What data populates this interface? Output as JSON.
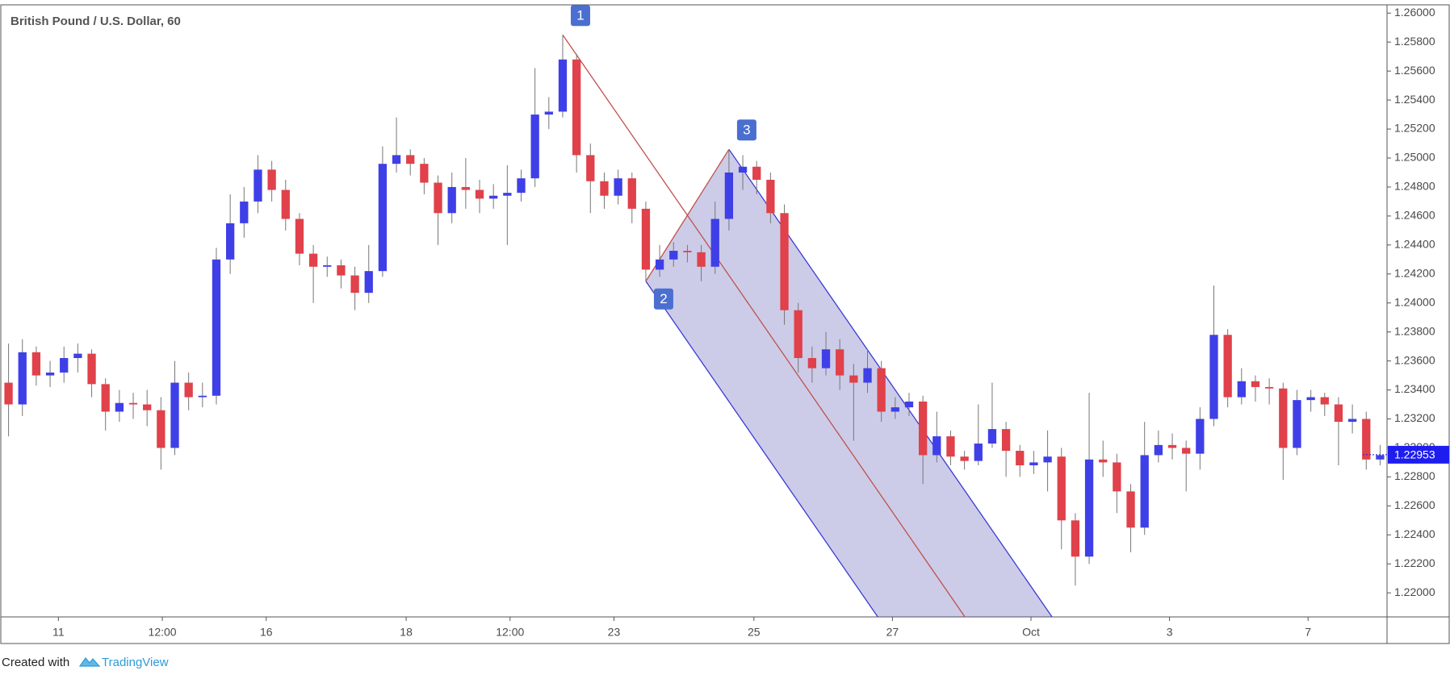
{
  "chart_data": {
    "type": "candlestick",
    "title": "British Pound / U.S. Dollar, 60",
    "footer": {
      "prefix": "Created with",
      "brand": "TradingView"
    },
    "up_color": "#3f3fe8",
    "down_color": "#e0414a",
    "xlim": [
      -0.5,
      99.5
    ],
    "xticks": [
      {
        "value": 3.6,
        "label": "11"
      },
      {
        "value": 11.1,
        "label": "12:00"
      },
      {
        "value": 18.6,
        "label": "16"
      },
      {
        "value": 28.7,
        "label": "18"
      },
      {
        "value": 36.2,
        "label": "12:00"
      },
      {
        "value": 43.7,
        "label": "23"
      },
      {
        "value": 53.8,
        "label": "25"
      },
      {
        "value": 63.8,
        "label": "27"
      },
      {
        "value": 73.8,
        "label": "Oct"
      },
      {
        "value": 83.8,
        "label": "3"
      },
      {
        "value": 93.8,
        "label": "7"
      }
    ],
    "ylim": [
      1.21834,
      1.26057
    ],
    "yticks": [
      {
        "value": 1.22,
        "label": "1.22000"
      },
      {
        "value": 1.222,
        "label": "1.22200"
      },
      {
        "value": 1.224,
        "label": "1.22400"
      },
      {
        "value": 1.226,
        "label": "1.22600"
      },
      {
        "value": 1.228,
        "label": "1.22800"
      },
      {
        "value": 1.23,
        "label": "1.23000"
      },
      {
        "value": 1.232,
        "label": "1.23200"
      },
      {
        "value": 1.234,
        "label": "1.23400"
      },
      {
        "value": 1.236,
        "label": "1.23600"
      },
      {
        "value": 1.238,
        "label": "1.23800"
      },
      {
        "value": 1.24,
        "label": "1.24000"
      },
      {
        "value": 1.242,
        "label": "1.24200"
      },
      {
        "value": 1.244,
        "label": "1.24400"
      },
      {
        "value": 1.246,
        "label": "1.24600"
      },
      {
        "value": 1.248,
        "label": "1.24800"
      },
      {
        "value": 1.25,
        "label": "1.25000"
      },
      {
        "value": 1.252,
        "label": "1.25200"
      },
      {
        "value": 1.254,
        "label": "1.25400"
      },
      {
        "value": 1.256,
        "label": "1.25600"
      },
      {
        "value": 1.258,
        "label": "1.25800"
      },
      {
        "value": 1.26,
        "label": "1.26000"
      }
    ],
    "last_price": 1.22953,
    "last_price_color": "#1d1df0",
    "channel": {
      "line_color": "#3a3ad6",
      "median_color": "#c0504d",
      "fill": "#3a3aa8"
    },
    "annotations": [
      {
        "label": "1",
        "x": 40,
        "y": 1.2585
      },
      {
        "label": "2",
        "x": 46,
        "y": 1.2415
      },
      {
        "label": "3",
        "x": 52,
        "y": 1.2506
      }
    ],
    "open": [
      1.2345,
      1.233,
      1.2366,
      1.235,
      1.2352,
      1.2362,
      1.2365,
      1.2344,
      1.2325,
      1.2331,
      1.233,
      1.2326,
      1.23,
      1.2345,
      1.2335,
      1.2336,
      1.243,
      1.2455,
      1.247,
      1.2492,
      1.2478,
      1.2458,
      1.2434,
      1.2425,
      1.2426,
      1.2419,
      1.2407,
      1.2422,
      1.2496,
      1.2502,
      1.2496,
      1.2483,
      1.2462,
      1.248,
      1.2478,
      1.2472,
      1.2474,
      1.2476,
      1.2486,
      1.253,
      1.2532,
      1.2568,
      1.2502,
      1.2484,
      1.2474,
      1.2486,
      1.2465,
      1.2423,
      1.243,
      1.2436,
      1.2435,
      1.2425,
      1.2458,
      1.249,
      1.2494,
      1.2485,
      1.2462,
      1.2395,
      1.2362,
      1.2355,
      1.2368,
      1.235,
      1.2345,
      1.2355,
      1.2325,
      1.2328,
      1.2332,
      1.2295,
      1.2308,
      1.2294,
      1.2291,
      1.2303,
      1.2313,
      1.2298,
      1.2288,
      1.229,
      1.2294,
      1.225,
      1.2225,
      1.2292,
      1.229,
      1.227,
      1.2245,
      1.2295,
      1.2302,
      1.23,
      1.2296,
      1.232,
      1.2378,
      1.2335,
      1.2346,
      1.2342,
      1.2341,
      1.23,
      1.2333,
      1.2335,
      1.233,
      1.2318,
      1.232,
      1.2292
    ],
    "high": [
      1.2372,
      1.2375,
      1.237,
      1.236,
      1.237,
      1.2372,
      1.2368,
      1.2348,
      1.234,
      1.2338,
      1.234,
      1.2335,
      1.236,
      1.2352,
      1.2345,
      1.2438,
      1.2475,
      1.248,
      1.2502,
      1.2498,
      1.2485,
      1.2462,
      1.244,
      1.2432,
      1.243,
      1.2425,
      1.244,
      1.2508,
      1.2528,
      1.2506,
      1.25,
      1.2488,
      1.249,
      1.25,
      1.2485,
      1.2482,
      1.2495,
      1.2492,
      1.2562,
      1.2542,
      1.2585,
      1.2572,
      1.251,
      1.249,
      1.2492,
      1.249,
      1.247,
      1.244,
      1.2442,
      1.244,
      1.244,
      1.247,
      1.2506,
      1.2502,
      1.2498,
      1.249,
      1.2468,
      1.24,
      1.237,
      1.238,
      1.2375,
      1.2358,
      1.2368,
      1.236,
      1.2335,
      1.2338,
      1.2336,
      1.2325,
      1.2312,
      1.2298,
      1.233,
      1.2345,
      1.2318,
      1.2302,
      1.2298,
      1.2312,
      1.23,
      1.2255,
      1.2338,
      1.2305,
      1.2296,
      1.2275,
      1.2318,
      1.2312,
      1.231,
      1.2305,
      1.2328,
      1.2412,
      1.2382,
      1.2355,
      1.235,
      1.2348,
      1.2345,
      1.234,
      1.234,
      1.2338,
      1.2335,
      1.233,
      1.2325,
      1.2302
    ],
    "low": [
      1.2308,
      1.2322,
      1.2343,
      1.2342,
      1.2345,
      1.2352,
      1.2335,
      1.2312,
      1.2318,
      1.232,
      1.2315,
      1.2285,
      1.2295,
      1.2326,
      1.2328,
      1.233,
      1.242,
      1.2445,
      1.2462,
      1.247,
      1.245,
      1.2426,
      1.24,
      1.2418,
      1.241,
      1.2395,
      1.24,
      1.2418,
      1.249,
      1.2488,
      1.2475,
      1.244,
      1.2455,
      1.2465,
      1.2462,
      1.2465,
      1.244,
      1.247,
      1.248,
      1.252,
      1.2528,
      1.249,
      1.2462,
      1.2465,
      1.2468,
      1.2455,
      1.2415,
      1.2418,
      1.2425,
      1.2428,
      1.2415,
      1.242,
      1.245,
      1.2478,
      1.2475,
      1.2455,
      1.2385,
      1.2352,
      1.2345,
      1.235,
      1.234,
      1.2305,
      1.2338,
      1.2318,
      1.232,
      1.2322,
      1.2275,
      1.229,
      1.2288,
      1.2285,
      1.2288,
      1.23,
      1.228,
      1.228,
      1.2282,
      1.227,
      1.223,
      1.2205,
      1.222,
      1.228,
      1.2255,
      1.2228,
      1.224,
      1.229,
      1.2292,
      1.227,
      1.2285,
      1.2315,
      1.2328,
      1.233,
      1.2332,
      1.233,
      1.2278,
      1.2295,
      1.2325,
      1.2322,
      1.2288,
      1.231,
      1.2285,
      1.2288
    ],
    "close": [
      1.233,
      1.2366,
      1.235,
      1.2352,
      1.2362,
      1.2365,
      1.2344,
      1.2325,
      1.2331,
      1.233,
      1.2326,
      1.23,
      1.2345,
      1.2335,
      1.2336,
      1.243,
      1.2455,
      1.247,
      1.2492,
      1.2478,
      1.2458,
      1.2434,
      1.2425,
      1.2426,
      1.2419,
      1.2407,
      1.2422,
      1.2496,
      1.2502,
      1.2496,
      1.2483,
      1.2462,
      1.248,
      1.2478,
      1.2472,
      1.2474,
      1.2476,
      1.2486,
      1.253,
      1.2532,
      1.2568,
      1.2502,
      1.2484,
      1.2474,
      1.2486,
      1.2465,
      1.2423,
      1.243,
      1.2436,
      1.2435,
      1.2425,
      1.2458,
      1.249,
      1.2494,
      1.2485,
      1.2462,
      1.2395,
      1.2362,
      1.2355,
      1.2368,
      1.235,
      1.2345,
      1.2355,
      1.2325,
      1.2328,
      1.2332,
      1.2295,
      1.2308,
      1.2294,
      1.2291,
      1.2303,
      1.2313,
      1.2298,
      1.2288,
      1.229,
      1.2294,
      1.225,
      1.2225,
      1.2292,
      1.229,
      1.227,
      1.2245,
      1.2295,
      1.2302,
      1.23,
      1.2296,
      1.232,
      1.2378,
      1.2335,
      1.2346,
      1.2342,
      1.2341,
      1.23,
      1.2333,
      1.2335,
      1.233,
      1.2318,
      1.232,
      1.2292,
      1.2295
    ]
  }
}
